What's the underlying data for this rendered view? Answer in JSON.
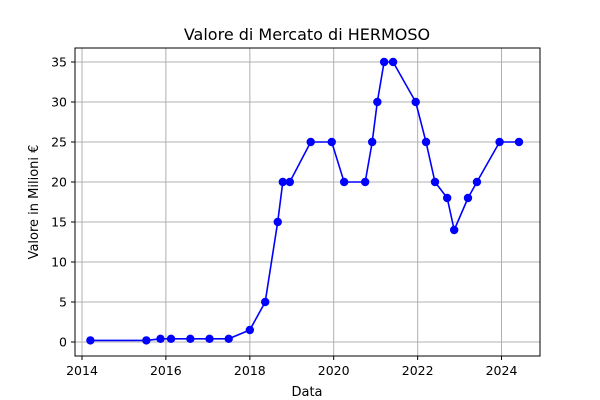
{
  "chart_data": {
    "type": "line",
    "title": "Valore di Mercato di HERMOSO",
    "xlabel": "Data",
    "ylabel": "Valore in Milioni €",
    "xlim": [
      "2013-11-01",
      "2024-12-01"
    ],
    "ylim": [
      -1.75,
      36.75
    ],
    "x_ticks": [
      "2014",
      "2016",
      "2018",
      "2020",
      "2022",
      "2024"
    ],
    "y_ticks": [
      0,
      5,
      10,
      15,
      20,
      25,
      30,
      35
    ],
    "grid": true,
    "colors": {
      "line": "#0000ff",
      "marker": "#0000ff"
    },
    "series": [
      {
        "x": [
          "2014-03-15",
          "2015-07-15",
          "2015-11-15",
          "2016-02-15",
          "2016-08-01",
          "2017-01-15",
          "2017-07-01",
          "2018-01-01",
          "2018-05-15",
          "2018-09-01",
          "2018-10-15",
          "2018-12-15",
          "2019-06-15",
          "2019-12-15",
          "2020-04-01",
          "2020-10-01",
          "2020-12-01",
          "2021-01-15",
          "2021-03-15",
          "2021-06-01",
          "2021-12-15",
          "2022-03-15",
          "2022-06-01",
          "2022-09-15",
          "2022-11-15",
          "2023-03-15",
          "2023-06-01",
          "2023-12-15",
          "2024-06-01"
        ],
        "values": [
          0.2,
          0.2,
          0.4,
          0.4,
          0.4,
          0.4,
          0.4,
          1.5,
          5,
          15,
          20,
          20,
          25,
          25,
          20,
          20,
          25,
          30,
          35,
          35,
          30,
          25,
          20,
          18,
          14,
          18,
          20,
          25,
          25
        ]
      }
    ]
  }
}
